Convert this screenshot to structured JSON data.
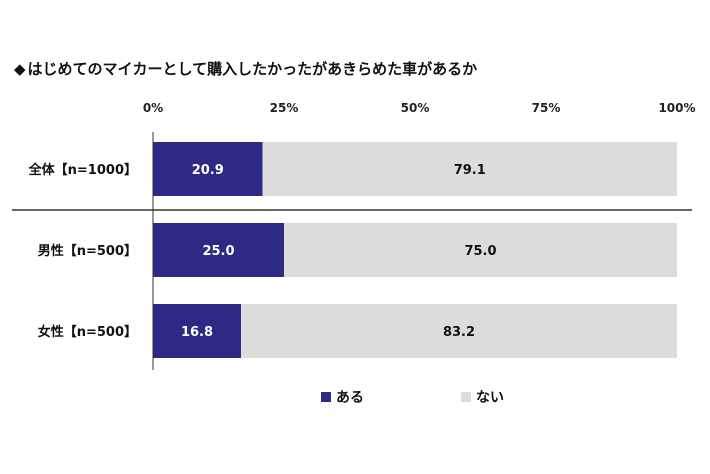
{
  "title_marker": "◆",
  "colors": {
    "aru": "#2e2a84",
    "nai": "#dcdcdc",
    "aru_text": "#ffffff",
    "nai_text": "#111111",
    "axis": "#333333"
  },
  "chart_data": {
    "type": "bar",
    "orientation": "horizontal-stacked-100",
    "title": "はじめてのマイカーとして購入したかったがあきらめた車があるか",
    "categories": [
      "全体【n=1000】",
      "男性【n=500】",
      "女性【n=500】"
    ],
    "series": [
      {
        "name": "ある",
        "values": [
          20.9,
          25.0,
          16.8
        ]
      },
      {
        "name": "ない",
        "values": [
          79.1,
          75.0,
          83.2
        ]
      }
    ],
    "value_labels": [
      [
        "20.9",
        "25.0",
        "16.8"
      ],
      [
        "79.1",
        "75.0",
        "83.2"
      ]
    ],
    "xticks": [
      "0%",
      "25%",
      "50%",
      "75%",
      "100%"
    ],
    "xlim": [
      0,
      100
    ],
    "xlabel": "",
    "ylabel": "",
    "legend": "bottom"
  }
}
